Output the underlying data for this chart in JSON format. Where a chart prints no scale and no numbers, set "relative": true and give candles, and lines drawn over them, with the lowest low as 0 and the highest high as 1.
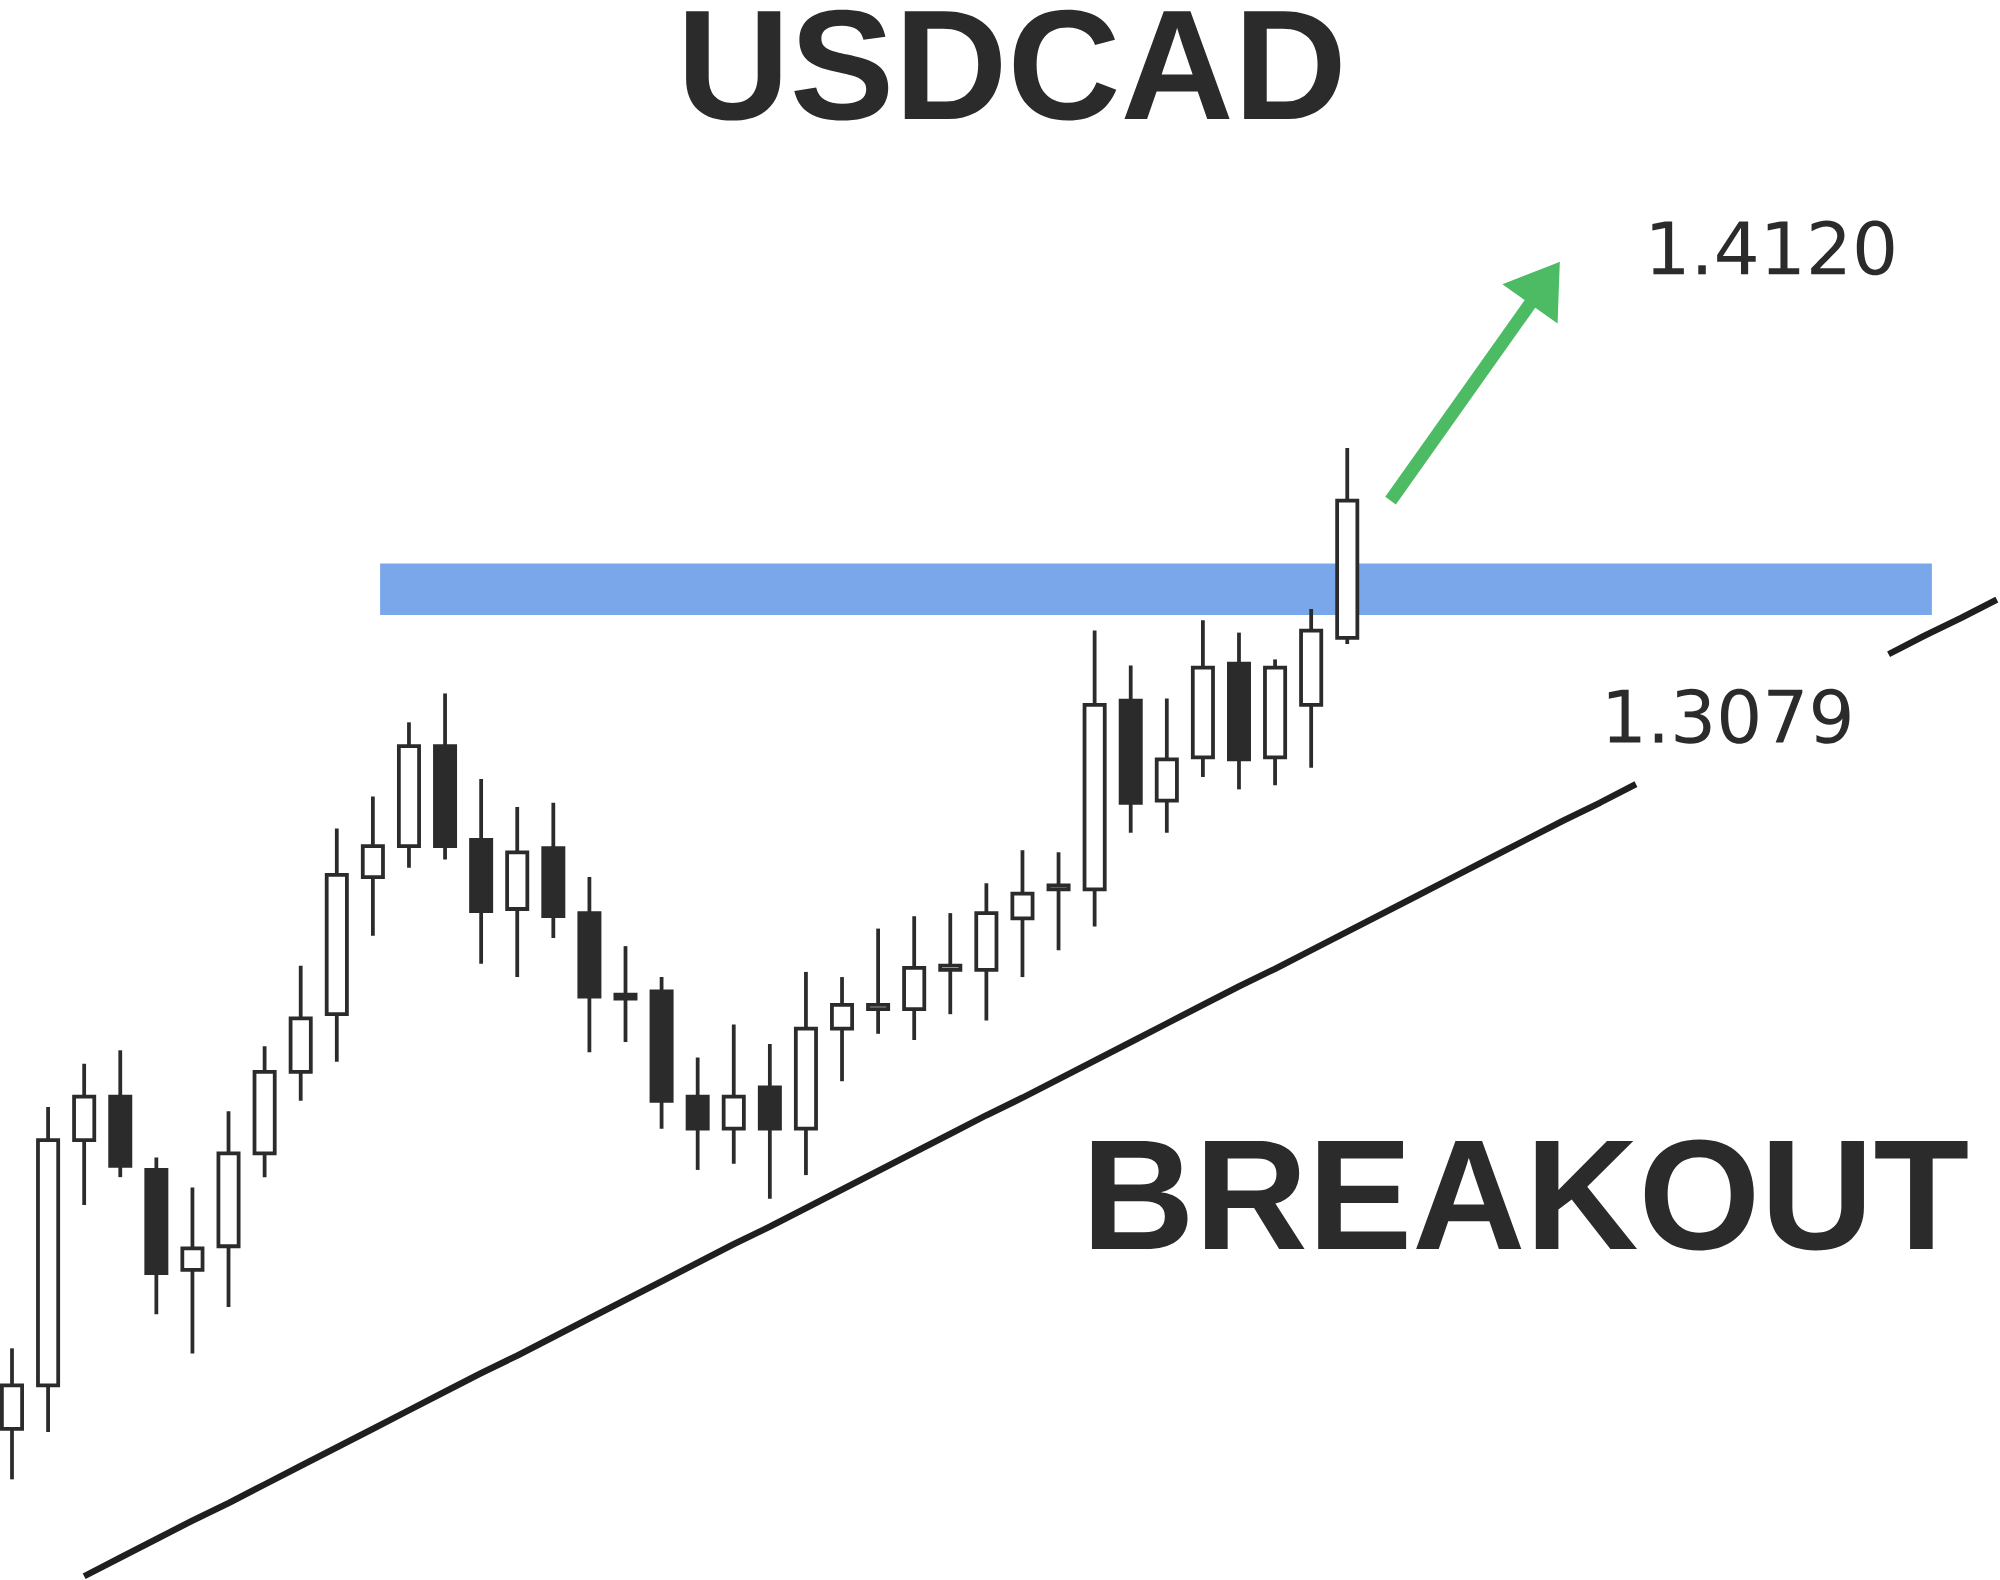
{
  "chart_data": {
    "type": "candlestick",
    "title": "USDCAD",
    "relative": true,
    "categories": [
      null,
      null,
      null,
      null,
      null,
      null,
      null,
      null,
      null,
      null,
      null,
      null,
      null,
      null,
      null,
      null,
      null,
      null,
      null,
      null,
      null,
      null,
      null,
      null,
      null,
      null,
      null,
      null,
      null,
      null,
      null,
      null,
      null,
      null,
      null,
      null,
      null,
      null,
      null,
      null,
      null,
      null,
      null,
      null,
      null,
      null,
      null,
      null,
      null,
      null,
      null,
      null,
      null,
      null,
      null,
      null
    ],
    "ohlc": [
      [
        0.049,
        0.127,
        0,
        0.091
      ],
      [
        0.091,
        0.361,
        0.046,
        0.329
      ],
      [
        0.329,
        0.403,
        0.266,
        0.371
      ],
      [
        0.371,
        0.416,
        0.293,
        0.304
      ],
      [
        0.3,
        0.312,
        0.16,
        0.2
      ],
      [
        0.203,
        0.283,
        0.122,
        0.224
      ],
      [
        0.226,
        0.357,
        0.167,
        0.316
      ],
      [
        0.316,
        0.42,
        0.293,
        0.395
      ],
      [
        0.395,
        0.498,
        0.367,
        0.447
      ],
      [
        0.451,
        0.631,
        0.405,
        0.586
      ],
      [
        0.584,
        0.662,
        0.527,
        0.614
      ],
      [
        0.614,
        0.734,
        0.593,
        0.711
      ],
      [
        0.711,
        0.762,
        0.601,
        0.614
      ],
      [
        0.62,
        0.679,
        0.5,
        0.551
      ],
      [
        0.553,
        0.652,
        0.487,
        0.608
      ],
      [
        0.612,
        0.656,
        0.525,
        0.546
      ],
      [
        0.549,
        0.584,
        0.414,
        0.468
      ],
      [
        0.468,
        0.517,
        0.424,
        0.466
      ],
      [
        0.473,
        0.487,
        0.34,
        0.367
      ],
      [
        0.371,
        0.409,
        0.3,
        0.34
      ],
      [
        0.34,
        0.441,
        0.306,
        0.371
      ],
      [
        0.38,
        0.422,
        0.272,
        0.34
      ],
      [
        0.34,
        0.492,
        0.295,
        0.437
      ],
      [
        0.437,
        0.487,
        0.386,
        0.46
      ],
      [
        0.456,
        0.534,
        0.432,
        0.46
      ],
      [
        0.456,
        0.546,
        0.426,
        0.496
      ],
      [
        0.494,
        0.549,
        0.451,
        0.498
      ],
      [
        0.494,
        0.578,
        0.445,
        0.549
      ],
      [
        0.544,
        0.61,
        0.487,
        0.568
      ],
      [
        0.572,
        0.608,
        0.513,
        0.576
      ],
      [
        0.572,
        0.823,
        0.536,
        0.751
      ],
      [
        0.755,
        0.789,
        0.627,
        0.656
      ],
      [
        0.658,
        0.757,
        0.627,
        0.698
      ],
      [
        0.7,
        0.833,
        0.681,
        0.787
      ],
      [
        0.791,
        0.821,
        0.669,
        0.698
      ],
      [
        0.7,
        0.795,
        0.673,
        0.787
      ],
      [
        0.751,
        0.844,
        0.69,
        0.823
      ],
      [
        0.816,
        1,
        0.81,
        0.949
      ],
      null,
      null,
      null,
      null,
      null,
      null,
      null,
      null,
      null,
      null,
      null,
      null,
      null,
      null,
      null,
      null,
      null,
      null
    ],
    "series": [
      {
        "type": "line",
        "color": "#1f1f1f",
        "values": [
          null,
          null,
          -0.094,
          -0.076,
          -0.058,
          -0.04,
          -0.023,
          -0.005,
          0.013,
          0.031,
          0.049,
          0.067,
          0.085,
          0.103,
          0.12,
          0.138,
          0.156,
          0.174,
          0.192,
          0.21,
          0.228,
          0.245,
          0.263,
          0.281,
          0.299,
          0.317,
          0.335,
          0.353,
          0.37,
          0.388,
          0.406,
          0.424,
          0.442,
          0.46,
          0.478,
          0.495,
          0.513,
          0.531,
          0.549,
          0.567,
          0.585,
          0.603,
          0.621,
          0.639,
          0.656,
          0.674,
          null,
          null,
          null,
          null,
          null,
          null,
          0.8,
          0.818,
          0.835,
          0.853
        ]
      }
    ],
    "bands": [
      {
        "axis": "y",
        "from": 0.838,
        "to": 0.888,
        "color": "#7aa6ea"
      }
    ],
    "annotations": [
      "BREAKOUT",
      "1.4120",
      "1.3079"
    ]
  }
}
